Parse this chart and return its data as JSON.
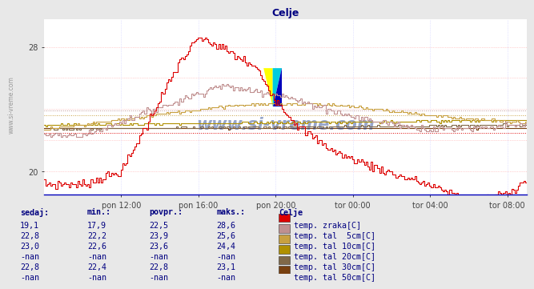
{
  "title": "Celje",
  "title_color": "#000080",
  "bg_color": "#e8e8e8",
  "plot_bg_color": "#ffffff",
  "y_min": 18.5,
  "y_max": 29.8,
  "ytick_vals": [
    20,
    28
  ],
  "grid_h_color": "#ffaaaa",
  "grid_h_vals": [
    20,
    22,
    24,
    26,
    28
  ],
  "grid_v_color": "#ccccff",
  "x_labels": [
    "pon 12:00",
    "pon 16:00",
    "pon 20:00",
    "tor 00:00",
    "tor 04:00",
    "tor 08:00"
  ],
  "series_colors": {
    "temp_zraka": "#dd0000",
    "temp_5cm": "#c09090",
    "temp_10cm": "#c8a040",
    "temp_20cm": "#b09000",
    "temp_30cm": "#806848",
    "temp_50cm": "#784010"
  },
  "avg_vals": {
    "temp_zraka": 22.5,
    "temp_5cm": 23.9,
    "temp_10cm": 23.6,
    "temp_30cm": 22.8
  },
  "table_color": "#000080",
  "table_headers": [
    "sedaj:",
    "min.:",
    "povpr.:",
    "maks.:",
    "Celje"
  ],
  "table_data": [
    [
      "19,1",
      "17,9",
      "22,5",
      "28,6"
    ],
    [
      "22,8",
      "22,2",
      "23,9",
      "25,6"
    ],
    [
      "23,0",
      "22,6",
      "23,6",
      "24,4"
    ],
    [
      "-nan",
      "-nan",
      "-nan",
      "-nan"
    ],
    [
      "22,8",
      "22,4",
      "22,8",
      "23,1"
    ],
    [
      "-nan",
      "-nan",
      "-nan",
      "-nan"
    ]
  ],
  "table_row_labels": [
    "temp. zraka[C]",
    "temp. tal  5cm[C]",
    "temp. tal 10cm[C]",
    "temp. tal 20cm[C]",
    "temp. tal 30cm[C]",
    "temp. tal 50cm[C]"
  ],
  "table_row_colors": [
    "#dd0000",
    "#c09090",
    "#c8a040",
    "#b09000",
    "#806848",
    "#784010"
  ],
  "watermark": "www.si-vreme.com",
  "watermark_color": "#1a3a8a"
}
